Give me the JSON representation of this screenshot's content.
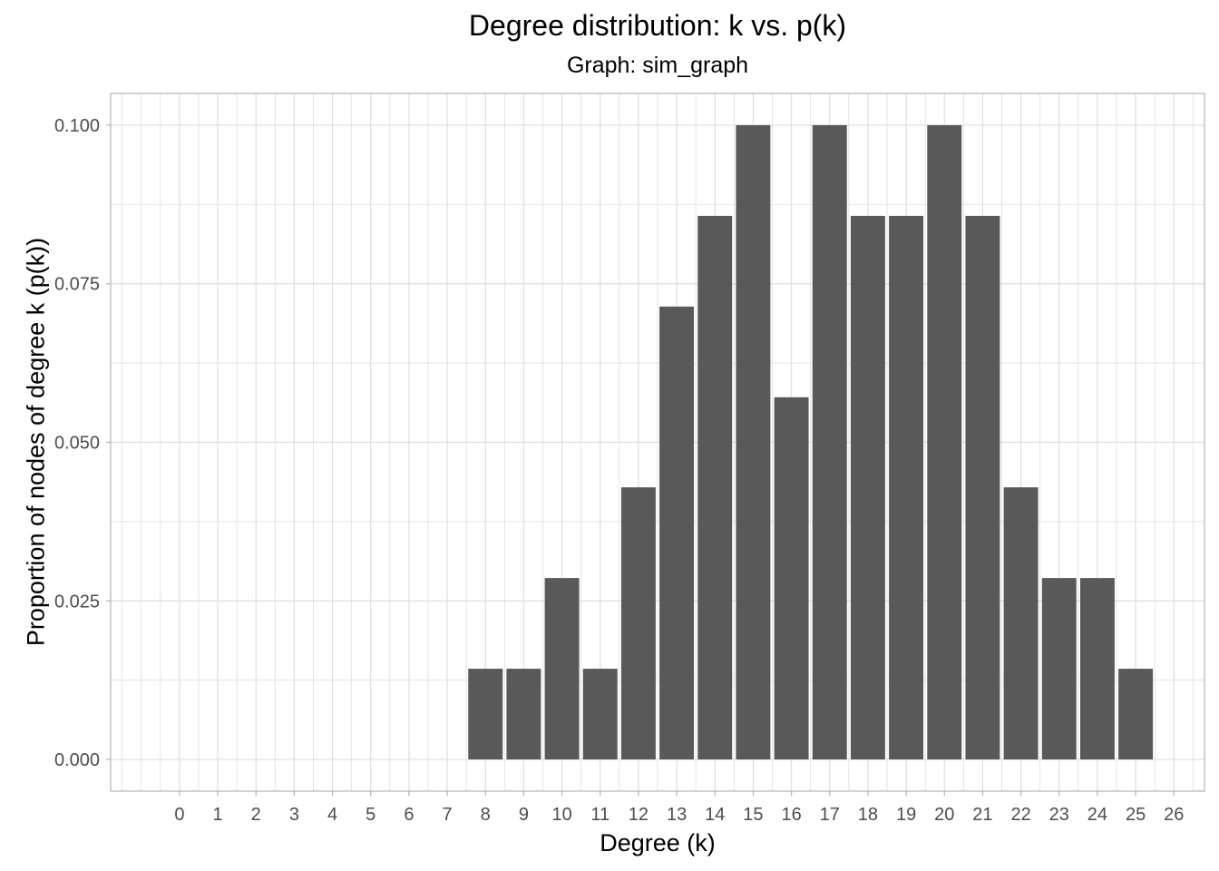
{
  "chart_data": {
    "type": "bar",
    "title": "Degree distribution: k vs. p(k)",
    "subtitle": "Graph: sim_graph",
    "xlabel": "Degree (k)",
    "ylabel": "Proportion of nodes of degree k (p(k))",
    "categories": [
      "0",
      "1",
      "2",
      "3",
      "4",
      "5",
      "6",
      "7",
      "8",
      "9",
      "10",
      "11",
      "12",
      "13",
      "14",
      "15",
      "16",
      "17",
      "18",
      "19",
      "20",
      "21",
      "22",
      "23",
      "24",
      "25",
      "26"
    ],
    "values": [
      0,
      0,
      0,
      0,
      0,
      0,
      0,
      0,
      0.0143,
      0.0143,
      0.0286,
      0.0143,
      0.0429,
      0.0714,
      0.0857,
      0.1,
      0.0571,
      0.1,
      0.0857,
      0.0857,
      0.1,
      0.0857,
      0.0429,
      0.0286,
      0.0286,
      0.0143,
      0
    ],
    "yticks": [
      "0.000",
      "0.025",
      "0.050",
      "0.075",
      "0.100"
    ],
    "ylim": [
      -0.005,
      0.105
    ],
    "xlim": [
      -1.8,
      26.8
    ],
    "grid": true,
    "colors": {
      "bar": "#595959",
      "grid": "#dedede",
      "panel_border": "#b3b3b3"
    }
  }
}
